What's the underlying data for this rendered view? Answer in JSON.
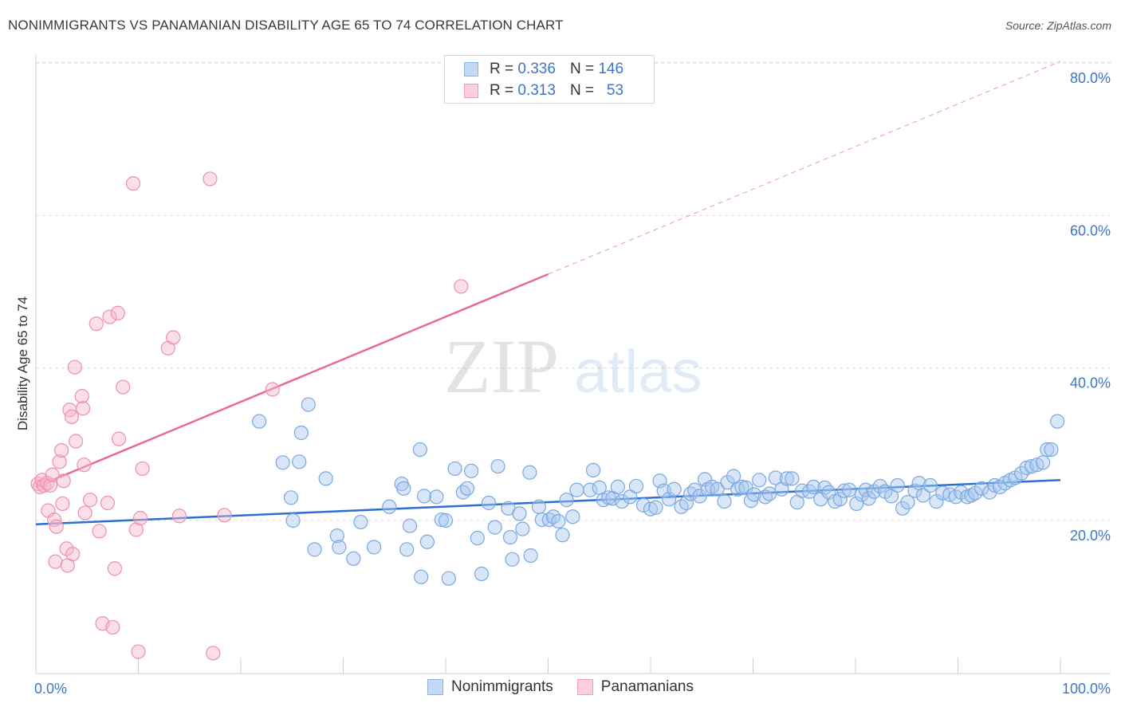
{
  "header": {
    "title": "NONIMMIGRANTS VS PANAMANIAN DISABILITY AGE 65 TO 74 CORRELATION CHART",
    "source": "Source: ZipAtlas.com"
  },
  "legend": {
    "rows": [
      {
        "r_label": "R = ",
        "r_value": "0.336",
        "n_label": "N = ",
        "n_value": "146",
        "color": "#a9c8f0"
      },
      {
        "r_label": "R = ",
        "r_value": "0.313",
        "n_label": "N = ",
        "n_value": "53",
        "color": "#f7b8cb"
      }
    ],
    "bottom": [
      {
        "label": "Nonimmigrants",
        "color": "#a9c8f0"
      },
      {
        "label": "Panamanians",
        "color": "#f7b8cb"
      }
    ]
  },
  "watermark": {
    "zip": "ZIP",
    "atlas": "atlas"
  },
  "chart_data": {
    "type": "scatter",
    "title": "NONIMMIGRANTS VS PANAMANIAN DISABILITY AGE 65 TO 74 CORRELATION CHART",
    "xlabel": "",
    "ylabel": "Disability Age 65 to 74",
    "xlim": [
      0,
      100
    ],
    "ylim": [
      0,
      82
    ],
    "x_tick_labels": [
      "0.0%",
      "100.0%"
    ],
    "y_ticks": [
      20,
      40,
      60,
      80
    ],
    "y_tick_labels": [
      "20.0%",
      "40.0%",
      "60.0%",
      "80.0%"
    ],
    "grid": "horizontal dashed",
    "series": [
      {
        "name": "Nonimmigrants",
        "color": "#a9c8f0",
        "stroke": "#7aa8e0",
        "trend": {
          "x0": 0,
          "y0": 19.5,
          "x1": 100,
          "y1": 25.3,
          "color": "#2a6fd1"
        },
        "points": [
          [
            21.8,
            33
          ],
          [
            26.6,
            35.2
          ],
          [
            25.9,
            31.5
          ],
          [
            24.1,
            27.6
          ],
          [
            25.7,
            27.7
          ],
          [
            28.3,
            25.5
          ],
          [
            24.9,
            23
          ],
          [
            25.1,
            20
          ],
          [
            27.2,
            16.2
          ],
          [
            29.4,
            18
          ],
          [
            29.6,
            16.5
          ],
          [
            31,
            15
          ],
          [
            31.7,
            19.8
          ],
          [
            33,
            16.5
          ],
          [
            34.5,
            21.8
          ],
          [
            35.7,
            24.8
          ],
          [
            35.9,
            24.2
          ],
          [
            36.2,
            16.2
          ],
          [
            36.5,
            19.3
          ],
          [
            37.5,
            29.3
          ],
          [
            37.9,
            23.2
          ],
          [
            38.2,
            17.2
          ],
          [
            37.6,
            12.6
          ],
          [
            39.1,
            23.1
          ],
          [
            39.6,
            20.1
          ],
          [
            40,
            20
          ],
          [
            40.3,
            12.4
          ],
          [
            40.9,
            26.8
          ],
          [
            41.7,
            23.7
          ],
          [
            42.1,
            24.2
          ],
          [
            42.5,
            26.5
          ],
          [
            43.1,
            17.7
          ],
          [
            43.5,
            13
          ],
          [
            44.2,
            22.3
          ],
          [
            44.8,
            19.1
          ],
          [
            45.1,
            27.1
          ],
          [
            46.1,
            21.6
          ],
          [
            46.3,
            17.8
          ],
          [
            46.5,
            14.9
          ],
          [
            47.2,
            20.9
          ],
          [
            47.5,
            18.9
          ],
          [
            48.2,
            26.3
          ],
          [
            48.3,
            15.4
          ],
          [
            49.1,
            21.8
          ],
          [
            49.4,
            20.1
          ],
          [
            50.1,
            20.1
          ],
          [
            50.5,
            20.5
          ],
          [
            51,
            19.9
          ],
          [
            51.4,
            18.1
          ],
          [
            51.8,
            22.7
          ],
          [
            52.4,
            20.5
          ],
          [
            52.8,
            24
          ],
          [
            54.1,
            24
          ],
          [
            54.4,
            26.6
          ],
          [
            55,
            24.3
          ],
          [
            55.4,
            22.7
          ],
          [
            55.9,
            23
          ],
          [
            56.3,
            22.9
          ],
          [
            56.8,
            24.4
          ],
          [
            57.2,
            22.5
          ],
          [
            58,
            23.1
          ],
          [
            58.6,
            24.5
          ],
          [
            59.3,
            22
          ],
          [
            60,
            21.5
          ],
          [
            60.5,
            21.7
          ],
          [
            60.9,
            25.2
          ],
          [
            61.3,
            23.9
          ],
          [
            61.8,
            22.8
          ],
          [
            62.3,
            24.1
          ],
          [
            63,
            21.8
          ],
          [
            63.5,
            22.3
          ],
          [
            63.9,
            23.5
          ],
          [
            64.3,
            24
          ],
          [
            64.8,
            23.2
          ],
          [
            65.3,
            25.4
          ],
          [
            65.6,
            24.1
          ],
          [
            66,
            24.4
          ],
          [
            66.5,
            24.1
          ],
          [
            67.2,
            22.5
          ],
          [
            67.5,
            25
          ],
          [
            68.1,
            25.8
          ],
          [
            68.5,
            24.1
          ],
          [
            68.9,
            24.4
          ],
          [
            69.3,
            24.3
          ],
          [
            69.8,
            22.6
          ],
          [
            70.1,
            23.4
          ],
          [
            70.6,
            25.3
          ],
          [
            71.2,
            23.1
          ],
          [
            71.6,
            23.5
          ],
          [
            72.2,
            25.6
          ],
          [
            72.8,
            24.1
          ],
          [
            73.3,
            25.5
          ],
          [
            73.8,
            25.5
          ],
          [
            74.3,
            22.4
          ],
          [
            74.8,
            23.9
          ],
          [
            75.5,
            23.8
          ],
          [
            75.9,
            24.4
          ],
          [
            76.6,
            22.8
          ],
          [
            77,
            24.3
          ],
          [
            77.4,
            23.7
          ],
          [
            78,
            22.5
          ],
          [
            78.5,
            22.8
          ],
          [
            78.9,
            23.9
          ],
          [
            79.4,
            24
          ],
          [
            80.1,
            22.2
          ],
          [
            80.6,
            23.4
          ],
          [
            81,
            24
          ],
          [
            81.3,
            22.9
          ],
          [
            81.8,
            23.8
          ],
          [
            82.4,
            24.5
          ],
          [
            82.9,
            23.8
          ],
          [
            83.5,
            23.2
          ],
          [
            84.1,
            24.6
          ],
          [
            84.6,
            21.6
          ],
          [
            85.1,
            22.4
          ],
          [
            85.8,
            23.9
          ],
          [
            86.2,
            24.9
          ],
          [
            86.6,
            23.3
          ],
          [
            87.3,
            24.6
          ],
          [
            87.9,
            22.5
          ],
          [
            88.5,
            23.6
          ],
          [
            89.2,
            23.4
          ],
          [
            89.8,
            23.1
          ],
          [
            90.3,
            23.7
          ],
          [
            90.9,
            23.1
          ],
          [
            91.3,
            23.3
          ],
          [
            91.7,
            23.6
          ],
          [
            92.3,
            24.2
          ],
          [
            93.1,
            23.7
          ],
          [
            93.6,
            24.6
          ],
          [
            94.1,
            24.4
          ],
          [
            94.6,
            24.9
          ],
          [
            95.1,
            25.3
          ],
          [
            95.6,
            25.6
          ],
          [
            96.2,
            26.2
          ],
          [
            96.7,
            26.9
          ],
          [
            97.2,
            27.1
          ],
          [
            97.7,
            27.3
          ],
          [
            98.3,
            27.6
          ],
          [
            98.7,
            29.3
          ],
          [
            99.1,
            29.3
          ],
          [
            99.7,
            33
          ]
        ]
      },
      {
        "name": "Panamanians",
        "color": "#f7b8cb",
        "stroke": "#ee8fac",
        "trend": {
          "x0": 0,
          "y0": 24.4,
          "x1": 50,
          "y1": 52.3,
          "color": "#e86a92",
          "dashed_to": {
            "x": 100,
            "y": 80.2
          }
        },
        "points": [
          [
            0.2,
            24.8
          ],
          [
            0.4,
            24.4
          ],
          [
            0.6,
            25.3
          ],
          [
            0.8,
            24.6
          ],
          [
            1.1,
            24.9
          ],
          [
            1.4,
            24.6
          ],
          [
            1.2,
            21.3
          ],
          [
            1.6,
            26
          ],
          [
            1.8,
            20.1
          ],
          [
            2,
            19.2
          ],
          [
            1.9,
            14.6
          ],
          [
            2.3,
            27.7
          ],
          [
            2.5,
            29.2
          ],
          [
            2.6,
            22.2
          ],
          [
            2.7,
            25.2
          ],
          [
            3,
            16.3
          ],
          [
            3.1,
            14.1
          ],
          [
            3.3,
            34.5
          ],
          [
            3.5,
            33.6
          ],
          [
            3.6,
            15.6
          ],
          [
            3.8,
            40.1
          ],
          [
            3.9,
            30.4
          ],
          [
            4.5,
            36.3
          ],
          [
            4.6,
            34.7
          ],
          [
            4.7,
            27.3
          ],
          [
            4.8,
            21
          ],
          [
            5.3,
            22.7
          ],
          [
            5.9,
            45.8
          ],
          [
            6.2,
            18.6
          ],
          [
            6.5,
            6.5
          ],
          [
            7,
            22.3
          ],
          [
            7.2,
            46.7
          ],
          [
            7.5,
            6
          ],
          [
            7.7,
            13.7
          ],
          [
            8,
            47.2
          ],
          [
            8.1,
            30.7
          ],
          [
            8.5,
            37.5
          ],
          [
            9.5,
            64.2
          ],
          [
            9.8,
            18.8
          ],
          [
            10,
            2.8
          ],
          [
            10.2,
            20.3
          ],
          [
            10.4,
            26.8
          ],
          [
            12.9,
            42.6
          ],
          [
            13.4,
            44
          ],
          [
            14,
            20.6
          ],
          [
            17,
            64.8
          ],
          [
            17.3,
            2.6
          ],
          [
            18.4,
            20.7
          ],
          [
            23.1,
            37.2
          ],
          [
            41.5,
            50.7
          ]
        ]
      }
    ]
  }
}
